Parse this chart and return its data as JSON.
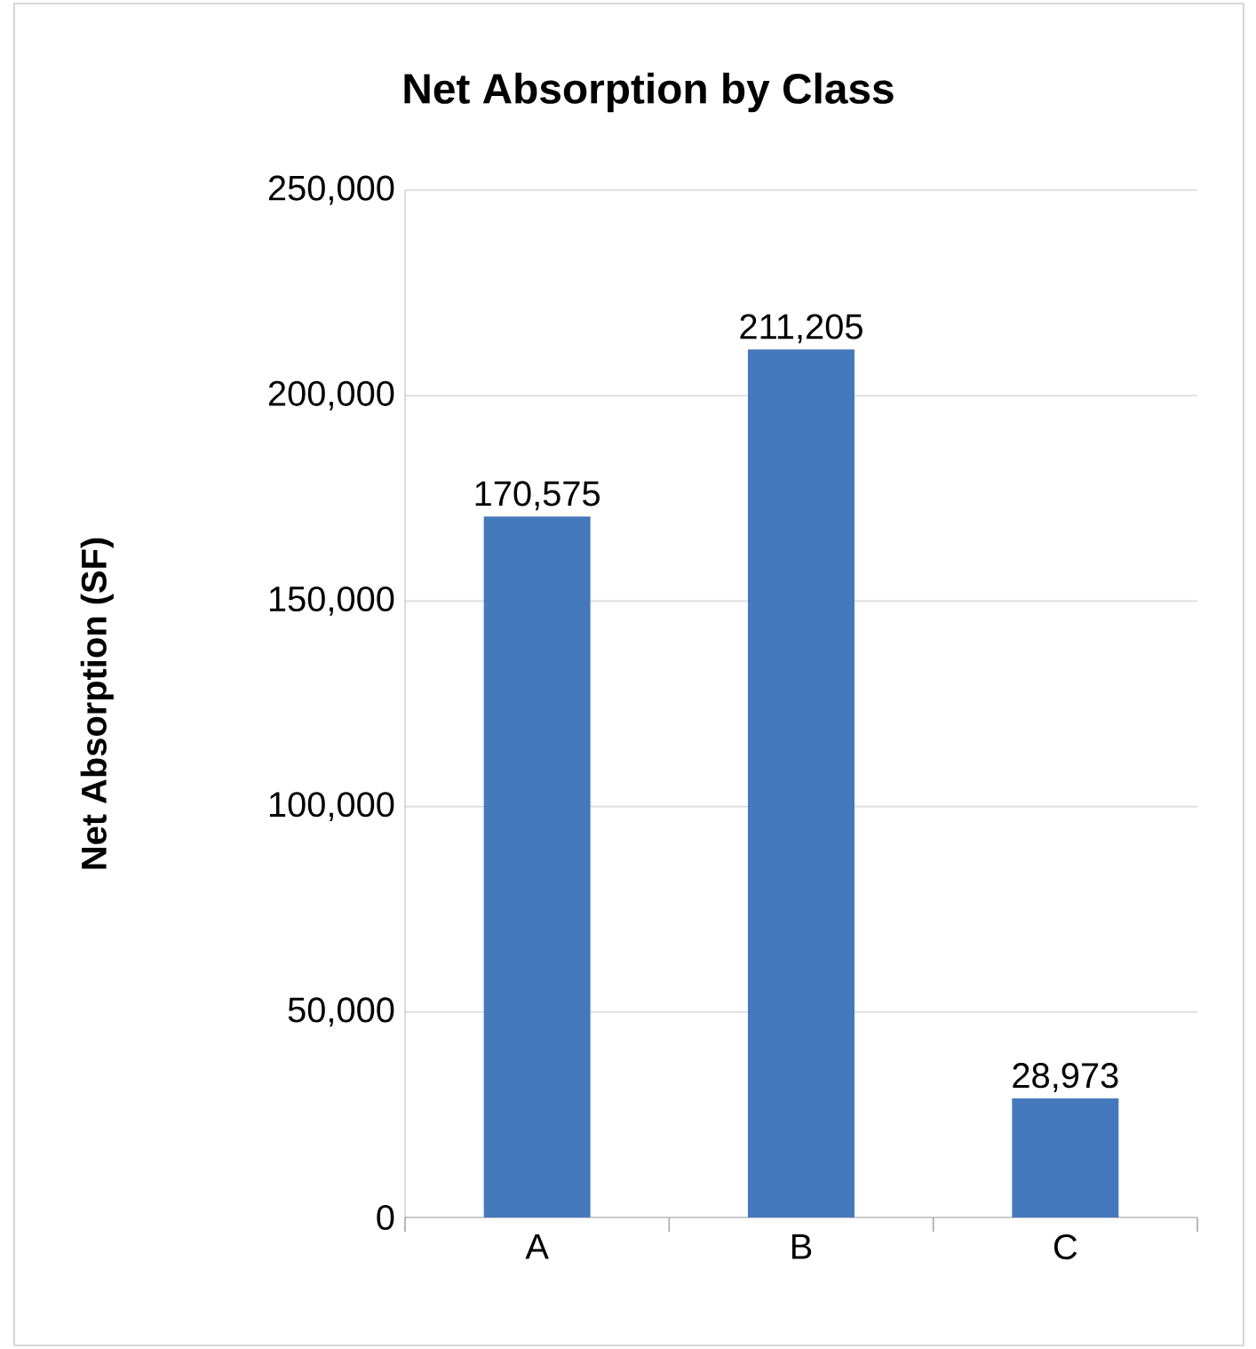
{
  "chart_data": {
    "type": "bar",
    "title": "Net Absorption by Class",
    "ylabel": "Net Absorption (SF)",
    "categories": [
      "A",
      "B",
      "C"
    ],
    "values": [
      170575,
      211205,
      28973
    ],
    "value_labels": [
      "170,575",
      "211,205",
      "28,973"
    ],
    "color": "#4579bd",
    "ylim": [
      0,
      250000
    ],
    "yticks": [
      0,
      {
        "value": 50000,
        "label": "50,000"
      },
      {
        "value": 100000,
        "label": "100,000"
      },
      {
        "value": 150000,
        "label": "150,000"
      },
      {
        "value": 200000,
        "label": "200,000"
      },
      {
        "value": 250000,
        "label": "250,000"
      }
    ],
    "grid": "y"
  }
}
